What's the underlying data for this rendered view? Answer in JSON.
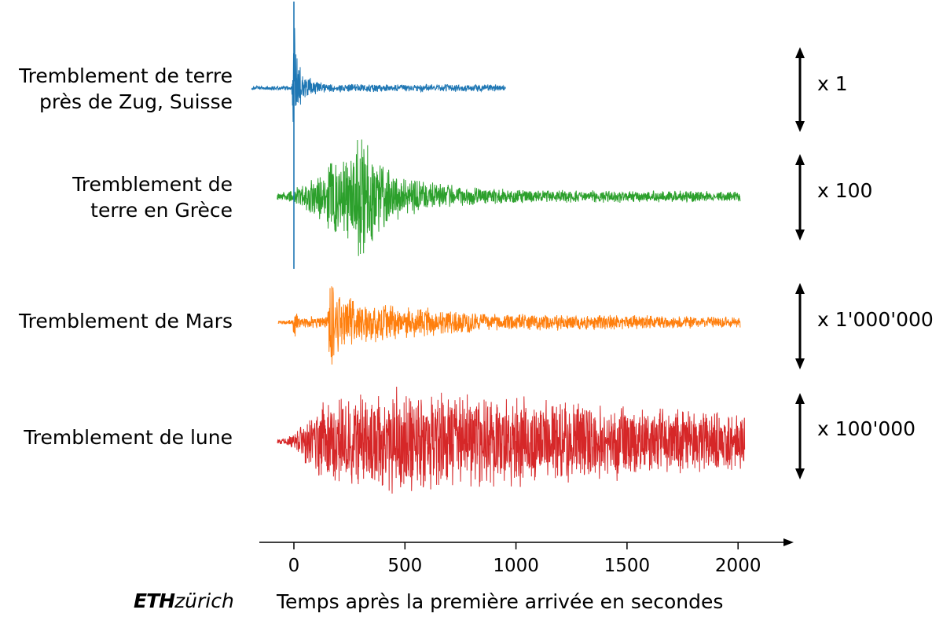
{
  "chart_data": {
    "type": "line",
    "xlabel": "Temps après la première arrivée en secondes",
    "xlim": [
      -170,
      2130
    ],
    "xticks": [
      0,
      500,
      1000,
      1500,
      2000
    ],
    "grid": false,
    "series": [
      {
        "name": "Tremblement de terre\nprès de Zug, Suisse",
        "color": "#1f77b4",
        "scale_label": "x 1",
        "t_start": -190,
        "t_end": 955,
        "envelope": [
          [
            -190,
            3
          ],
          [
            -10,
            3
          ],
          [
            0,
            110
          ],
          [
            10,
            55
          ],
          [
            50,
            16
          ],
          [
            150,
            6
          ],
          [
            955,
            5
          ]
        ]
      },
      {
        "name": "Tremblement de\nterre en Grèce",
        "color": "#2ca02c",
        "scale_label": "x 100",
        "t_start": -75,
        "t_end": 2010,
        "envelope": [
          [
            -75,
            4
          ],
          [
            0,
            10
          ],
          [
            100,
            28
          ],
          [
            170,
            50
          ],
          [
            260,
            58
          ],
          [
            300,
            85
          ],
          [
            360,
            55
          ],
          [
            500,
            26
          ],
          [
            700,
            15
          ],
          [
            1000,
            9
          ],
          [
            1600,
            8
          ],
          [
            2010,
            7
          ]
        ]
      },
      {
        "name": "Tremblement de Mars",
        "color": "#ff7f0e",
        "scale_label": "x 1'000'000",
        "t_start": -70,
        "t_end": 2010,
        "envelope": [
          [
            -70,
            3
          ],
          [
            -5,
            3
          ],
          [
            0,
            25
          ],
          [
            20,
            8
          ],
          [
            150,
            8
          ],
          [
            170,
            92
          ],
          [
            190,
            42
          ],
          [
            300,
            30
          ],
          [
            500,
            22
          ],
          [
            900,
            12
          ],
          [
            2010,
            8
          ]
        ]
      },
      {
        "name": "Tremblement de lune",
        "color": "#d62728",
        "scale_label": "x 100'000",
        "t_start": -75,
        "t_end": 2030,
        "envelope": [
          [
            -75,
            2
          ],
          [
            0,
            10
          ],
          [
            50,
            30
          ],
          [
            150,
            58
          ],
          [
            300,
            65
          ],
          [
            500,
            72
          ],
          [
            900,
            62
          ],
          [
            1400,
            52
          ],
          [
            2030,
            42
          ]
        ]
      }
    ]
  },
  "logo": {
    "brand": "ETH",
    "sub": "zürich"
  }
}
